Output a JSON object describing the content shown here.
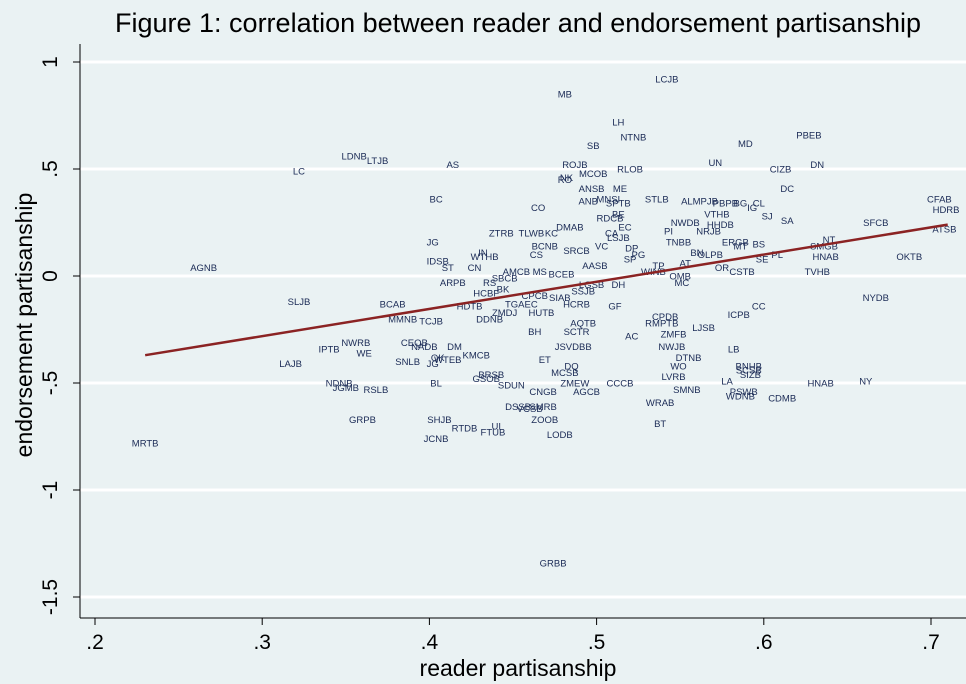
{
  "chart_data": {
    "type": "scatter",
    "title": "Figure 1: correlation between reader and endorsement partisanship",
    "xlabel": "reader partisanship",
    "ylabel": "endorsement partisanship",
    "xlim": [
      0.18,
      0.72
    ],
    "ylim": [
      -1.6,
      1.0
    ],
    "xticks": [
      {
        "v": 0.2,
        "label": ".2"
      },
      {
        "v": 0.3,
        "label": ".3"
      },
      {
        "v": 0.4,
        "label": ".4"
      },
      {
        "v": 0.5,
        "label": ".5"
      },
      {
        "v": 0.6,
        "label": ".6"
      },
      {
        "v": 0.7,
        "label": ".7"
      }
    ],
    "yticks": [
      {
        "v": 1,
        "label": "1"
      },
      {
        "v": 0.5,
        "label": ".5"
      },
      {
        "v": 0,
        "label": "0"
      },
      {
        "v": -0.5,
        "label": "-.5"
      },
      {
        "v": -1,
        "label": "-1"
      },
      {
        "v": -1.5,
        "label": "-1.5"
      }
    ],
    "grid": true,
    "fit_line": {
      "x": [
        0.23,
        0.71
      ],
      "y": [
        -0.37,
        0.24
      ],
      "color": "#8b2323"
    },
    "label_color": "#1a2a55",
    "points": [
      {
        "label": "LCJB",
        "x": 0.542,
        "y": 0.92
      },
      {
        "label": "MB",
        "x": 0.481,
        "y": 0.85
      },
      {
        "label": "LH",
        "x": 0.513,
        "y": 0.72
      },
      {
        "label": "NTNB",
        "x": 0.522,
        "y": 0.65
      },
      {
        "label": "PBEB",
        "x": 0.627,
        "y": 0.66
      },
      {
        "label": "MD",
        "x": 0.589,
        "y": 0.62
      },
      {
        "label": "SB",
        "x": 0.498,
        "y": 0.61
      },
      {
        "label": "LDNB",
        "x": 0.355,
        "y": 0.56
      },
      {
        "label": "LTJB",
        "x": 0.369,
        "y": 0.54
      },
      {
        "label": "AS",
        "x": 0.414,
        "y": 0.52
      },
      {
        "label": "ROJB",
        "x": 0.487,
        "y": 0.52
      },
      {
        "label": "UN",
        "x": 0.571,
        "y": 0.53
      },
      {
        "label": "DN",
        "x": 0.632,
        "y": 0.52
      },
      {
        "label": "CIZB",
        "x": 0.61,
        "y": 0.5
      },
      {
        "label": "RLOB",
        "x": 0.52,
        "y": 0.5
      },
      {
        "label": "MCOB",
        "x": 0.498,
        "y": 0.48
      },
      {
        "label": "LC",
        "x": 0.322,
        "y": 0.49
      },
      {
        "label": "RO",
        "x": 0.481,
        "y": 0.45
      },
      {
        "label": "NK",
        "x": 0.482,
        "y": 0.46
      },
      {
        "label": "ANSB",
        "x": 0.497,
        "y": 0.41
      },
      {
        "label": "ME",
        "x": 0.514,
        "y": 0.41
      },
      {
        "label": "DC",
        "x": 0.614,
        "y": 0.41
      },
      {
        "label": "CFAB",
        "x": 0.705,
        "y": 0.36
      },
      {
        "label": "HDRB",
        "x": 0.709,
        "y": 0.31
      },
      {
        "label": "BC",
        "x": 0.404,
        "y": 0.36
      },
      {
        "label": "MNSI",
        "x": 0.507,
        "y": 0.36
      },
      {
        "label": "STLB",
        "x": 0.536,
        "y": 0.36
      },
      {
        "label": "ANB",
        "x": 0.495,
        "y": 0.35
      },
      {
        "label": "SPTB",
        "x": 0.513,
        "y": 0.34
      },
      {
        "label": "AL",
        "x": 0.554,
        "y": 0.35
      },
      {
        "label": "MPJB",
        "x": 0.565,
        "y": 0.35
      },
      {
        "label": "PBPB",
        "x": 0.577,
        "y": 0.34
      },
      {
        "label": "BG",
        "x": 0.586,
        "y": 0.34
      },
      {
        "label": "CL",
        "x": 0.597,
        "y": 0.34
      },
      {
        "label": "IG",
        "x": 0.593,
        "y": 0.32
      },
      {
        "label": "CO",
        "x": 0.465,
        "y": 0.32
      },
      {
        "label": "BE",
        "x": 0.513,
        "y": 0.29
      },
      {
        "label": "VTHB",
        "x": 0.572,
        "y": 0.29
      },
      {
        "label": "SJ",
        "x": 0.602,
        "y": 0.28
      },
      {
        "label": "SA",
        "x": 0.614,
        "y": 0.26
      },
      {
        "label": "RDCB",
        "x": 0.508,
        "y": 0.27
      },
      {
        "label": "NWDB",
        "x": 0.553,
        "y": 0.25
      },
      {
        "label": "HHDB",
        "x": 0.574,
        "y": 0.24
      },
      {
        "label": "SFCB",
        "x": 0.667,
        "y": 0.25
      },
      {
        "label": "DMAB",
        "x": 0.484,
        "y": 0.23
      },
      {
        "label": "EC",
        "x": 0.517,
        "y": 0.23
      },
      {
        "label": "ATSB",
        "x": 0.708,
        "y": 0.22
      },
      {
        "label": "ZTRB",
        "x": 0.443,
        "y": 0.2
      },
      {
        "label": "TLWB",
        "x": 0.461,
        "y": 0.2
      },
      {
        "label": "KC",
        "x": 0.473,
        "y": 0.2
      },
      {
        "label": "PI",
        "x": 0.543,
        "y": 0.21
      },
      {
        "label": "CA",
        "x": 0.509,
        "y": 0.2
      },
      {
        "label": "NRJB",
        "x": 0.567,
        "y": 0.21
      },
      {
        "label": "NT",
        "x": 0.639,
        "y": 0.17
      },
      {
        "label": "SMGB",
        "x": 0.636,
        "y": 0.14
      },
      {
        "label": "JG",
        "x": 0.402,
        "y": 0.16
      },
      {
        "label": "BCNB",
        "x": 0.469,
        "y": 0.14
      },
      {
        "label": "LSJB",
        "x": 0.513,
        "y": 0.18
      },
      {
        "label": "TNBB",
        "x": 0.549,
        "y": 0.16
      },
      {
        "label": "ERGB",
        "x": 0.583,
        "y": 0.16
      },
      {
        "label": "BS",
        "x": 0.597,
        "y": 0.15
      },
      {
        "label": "MT",
        "x": 0.586,
        "y": 0.14
      },
      {
        "label": "VC",
        "x": 0.503,
        "y": 0.14
      },
      {
        "label": "DP",
        "x": 0.521,
        "y": 0.13
      },
      {
        "label": "SRCB",
        "x": 0.488,
        "y": 0.12
      },
      {
        "label": "CS",
        "x": 0.464,
        "y": 0.1
      },
      {
        "label": "IN",
        "x": 0.432,
        "y": 0.11
      },
      {
        "label": "PG",
        "x": 0.525,
        "y": 0.1
      },
      {
        "label": "BN",
        "x": 0.56,
        "y": 0.11
      },
      {
        "label": "OLPB",
        "x": 0.568,
        "y": 0.1
      },
      {
        "label": "PL",
        "x": 0.608,
        "y": 0.1
      },
      {
        "label": "HNAB",
        "x": 0.637,
        "y": 0.09
      },
      {
        "label": "OKTB",
        "x": 0.687,
        "y": 0.09
      },
      {
        "label": "WTHB",
        "x": 0.433,
        "y": 0.09
      },
      {
        "label": "SP",
        "x": 0.52,
        "y": 0.08
      },
      {
        "label": "SE",
        "x": 0.599,
        "y": 0.08
      },
      {
        "label": "IDSB",
        "x": 0.405,
        "y": 0.07
      },
      {
        "label": "ST",
        "x": 0.411,
        "y": 0.04
      },
      {
        "label": "CN",
        "x": 0.427,
        "y": 0.04
      },
      {
        "label": "AASB",
        "x": 0.499,
        "y": 0.05
      },
      {
        "label": "TP",
        "x": 0.537,
        "y": 0.05
      },
      {
        "label": "AT",
        "x": 0.553,
        "y": 0.06
      },
      {
        "label": "OR",
        "x": 0.575,
        "y": 0.04
      },
      {
        "label": "CSTB",
        "x": 0.587,
        "y": 0.02
      },
      {
        "label": "TVHB",
        "x": 0.632,
        "y": 0.02
      },
      {
        "label": "AGNB",
        "x": 0.265,
        "y": 0.04
      },
      {
        "label": "AMCB",
        "x": 0.452,
        "y": 0.02
      },
      {
        "label": "MS",
        "x": 0.466,
        "y": 0.02
      },
      {
        "label": "BCEB",
        "x": 0.479,
        "y": 0.01
      },
      {
        "label": "WINB",
        "x": 0.534,
        "y": 0.02
      },
      {
        "label": "OMB",
        "x": 0.55,
        "y": 0.0
      },
      {
        "label": "ARPB",
        "x": 0.414,
        "y": -0.03
      },
      {
        "label": "RS",
        "x": 0.436,
        "y": -0.03
      },
      {
        "label": "SBCB",
        "x": 0.445,
        "y": -0.01
      },
      {
        "label": "DH",
        "x": 0.513,
        "y": -0.04
      },
      {
        "label": "MC",
        "x": 0.551,
        "y": -0.03
      },
      {
        "label": "LGSB",
        "x": 0.497,
        "y": -0.04
      },
      {
        "label": "BK",
        "x": 0.444,
        "y": -0.06
      },
      {
        "label": "SSJB",
        "x": 0.492,
        "y": -0.07
      },
      {
        "label": "HCBF",
        "x": 0.434,
        "y": -0.08
      },
      {
        "label": "CPCB",
        "x": 0.463,
        "y": -0.09
      },
      {
        "label": "SIAB",
        "x": 0.478,
        "y": -0.1
      },
      {
        "label": "NYDB",
        "x": 0.667,
        "y": -0.1
      },
      {
        "label": "SLJB",
        "x": 0.322,
        "y": -0.12
      },
      {
        "label": "BCAB",
        "x": 0.378,
        "y": -0.13
      },
      {
        "label": "TGAEC",
        "x": 0.455,
        "y": -0.13
      },
      {
        "label": "HCRB",
        "x": 0.488,
        "y": -0.13
      },
      {
        "label": "GF",
        "x": 0.511,
        "y": -0.14
      },
      {
        "label": "HDTB",
        "x": 0.424,
        "y": -0.14
      },
      {
        "label": "CC",
        "x": 0.597,
        "y": -0.14
      },
      {
        "label": "ZMDJ",
        "x": 0.445,
        "y": -0.17
      },
      {
        "label": "HUTB",
        "x": 0.467,
        "y": -0.17
      },
      {
        "label": "ICPB",
        "x": 0.585,
        "y": -0.18
      },
      {
        "label": "MMNB",
        "x": 0.384,
        "y": -0.2
      },
      {
        "label": "TCJB",
        "x": 0.401,
        "y": -0.21
      },
      {
        "label": "DDNB",
        "x": 0.436,
        "y": -0.2
      },
      {
        "label": "CPDB",
        "x": 0.541,
        "y": -0.19
      },
      {
        "label": "AQTB",
        "x": 0.492,
        "y": -0.22
      },
      {
        "label": "RMPTB",
        "x": 0.539,
        "y": -0.22
      },
      {
        "label": "LJSB",
        "x": 0.564,
        "y": -0.24
      },
      {
        "label": "BH",
        "x": 0.463,
        "y": -0.26
      },
      {
        "label": "SCTR",
        "x": 0.488,
        "y": -0.26
      },
      {
        "label": "AC",
        "x": 0.521,
        "y": -0.28
      },
      {
        "label": "ZMFB",
        "x": 0.546,
        "y": -0.27
      },
      {
        "label": "NWRB",
        "x": 0.356,
        "y": -0.31
      },
      {
        "label": "CEQB",
        "x": 0.391,
        "y": -0.31
      },
      {
        "label": "IPTB",
        "x": 0.34,
        "y": -0.34
      },
      {
        "label": "WE",
        "x": 0.361,
        "y": -0.36
      },
      {
        "label": "NADB",
        "x": 0.397,
        "y": -0.33
      },
      {
        "label": "DM",
        "x": 0.415,
        "y": -0.33
      },
      {
        "label": "JSVDBB",
        "x": 0.486,
        "y": -0.33
      },
      {
        "label": "NWJB",
        "x": 0.545,
        "y": -0.33
      },
      {
        "label": "LB",
        "x": 0.582,
        "y": -0.34
      },
      {
        "label": "KMCB",
        "x": 0.428,
        "y": -0.37
      },
      {
        "label": "DTNB",
        "x": 0.555,
        "y": -0.38
      },
      {
        "label": "OK",
        "x": 0.405,
        "y": -0.38
      },
      {
        "label": "WTEB",
        "x": 0.411,
        "y": -0.39
      },
      {
        "label": "ET",
        "x": 0.469,
        "y": -0.39
      },
      {
        "label": "LAJB",
        "x": 0.317,
        "y": -0.41
      },
      {
        "label": "SNLB",
        "x": 0.387,
        "y": -0.4
      },
      {
        "label": "JG",
        "x": 0.402,
        "y": -0.41
      },
      {
        "label": "DQ",
        "x": 0.485,
        "y": -0.42
      },
      {
        "label": "WO",
        "x": 0.549,
        "y": -0.42
      },
      {
        "label": "BNHB",
        "x": 0.591,
        "y": -0.42
      },
      {
        "label": "SCSB",
        "x": 0.591,
        "y": -0.44
      },
      {
        "label": "MCSB",
        "x": 0.481,
        "y": -0.45
      },
      {
        "label": "BRSB",
        "x": 0.437,
        "y": -0.46
      },
      {
        "label": "LVRB",
        "x": 0.546,
        "y": -0.47
      },
      {
        "label": "SIZB",
        "x": 0.592,
        "y": -0.46
      },
      {
        "label": "GSOB",
        "x": 0.434,
        "y": -0.48
      },
      {
        "label": "LA",
        "x": 0.578,
        "y": -0.49
      },
      {
        "label": "NY",
        "x": 0.661,
        "y": -0.49
      },
      {
        "label": "BL",
        "x": 0.404,
        "y": -0.5
      },
      {
        "label": "NDNB",
        "x": 0.346,
        "y": -0.5
      },
      {
        "label": "ZMEW",
        "x": 0.487,
        "y": -0.5
      },
      {
        "label": "CCCB",
        "x": 0.514,
        "y": -0.5
      },
      {
        "label": "HNAB",
        "x": 0.634,
        "y": -0.5
      },
      {
        "label": "SDUN",
        "x": 0.449,
        "y": -0.51
      },
      {
        "label": "JGMB",
        "x": 0.35,
        "y": -0.52
      },
      {
        "label": "RSLB",
        "x": 0.368,
        "y": -0.53
      },
      {
        "label": "SMNB",
        "x": 0.554,
        "y": -0.53
      },
      {
        "label": "CNGB",
        "x": 0.468,
        "y": -0.54
      },
      {
        "label": "AGCB",
        "x": 0.494,
        "y": -0.54
      },
      {
        "label": "PSWB",
        "x": 0.588,
        "y": -0.54
      },
      {
        "label": "WDNB",
        "x": 0.586,
        "y": -0.56
      },
      {
        "label": "CDMB",
        "x": 0.611,
        "y": -0.57
      },
      {
        "label": "WRAB",
        "x": 0.538,
        "y": -0.59
      },
      {
        "label": "DSSB",
        "x": 0.453,
        "y": -0.61
      },
      {
        "label": "SMRB",
        "x": 0.468,
        "y": -0.61
      },
      {
        "label": "VCSB",
        "x": 0.46,
        "y": -0.62
      },
      {
        "label": "GRPB",
        "x": 0.36,
        "y": -0.67
      },
      {
        "label": "SHJB",
        "x": 0.406,
        "y": -0.67
      },
      {
        "label": "ZOOB",
        "x": 0.469,
        "y": -0.67
      },
      {
        "label": "RTDB",
        "x": 0.421,
        "y": -0.71
      },
      {
        "label": "UI",
        "x": 0.44,
        "y": -0.7
      },
      {
        "label": "BT",
        "x": 0.538,
        "y": -0.69
      },
      {
        "label": "FTUB",
        "x": 0.438,
        "y": -0.73
      },
      {
        "label": "LODB",
        "x": 0.478,
        "y": -0.74
      },
      {
        "label": "JCNB",
        "x": 0.404,
        "y": -0.76
      },
      {
        "label": "MRTB",
        "x": 0.23,
        "y": -0.78
      },
      {
        "label": "GRBB",
        "x": 0.474,
        "y": -1.34
      }
    ]
  }
}
